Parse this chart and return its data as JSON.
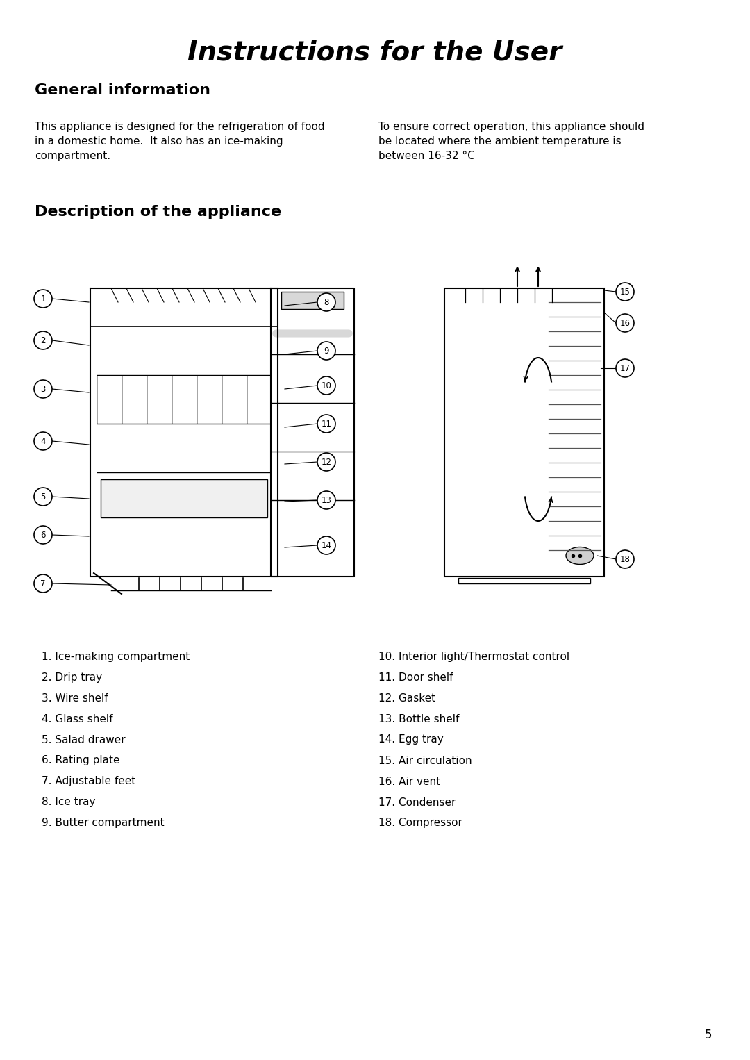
{
  "title": "Instructions for the User",
  "title_fontsize": 28,
  "title_fontweight": "bold",
  "title_fontstyle": "italic",
  "bg_color": "#ffffff",
  "text_color": "#000000",
  "section1_heading": "General information",
  "section1_heading_fontsize": 16,
  "section1_heading_fontweight": "bold",
  "para1_left": "This appliance is designed for the refrigeration of food\nin a domestic home.  It also has an ice-making\ncompartment.",
  "para1_right": "To ensure correct operation, this appliance should\nbe located where the ambient temperature is\nbetween 16-32 °C",
  "section2_heading": "Description of the appliance",
  "section2_heading_fontsize": 16,
  "section2_heading_fontweight": "bold",
  "items_left": [
    "1. Ice-making compartment",
    "2. Drip tray",
    "3. Wire shelf",
    "4. Glass shelf",
    "5. Salad drawer",
    "6. Rating plate",
    "7. Adjustable feet",
    "8. Ice tray",
    "9. Butter compartment"
  ],
  "items_right": [
    "10. Interior light/Thermostat control",
    "11. Door shelf",
    "12. Gasket",
    "13. Bottle shelf",
    "14. Egg tray",
    "15. Air circulation",
    "16. Air vent",
    "17. Condenser",
    "18. Compressor"
  ],
  "page_number": "5",
  "body_fontsize": 11,
  "list_fontsize": 11
}
